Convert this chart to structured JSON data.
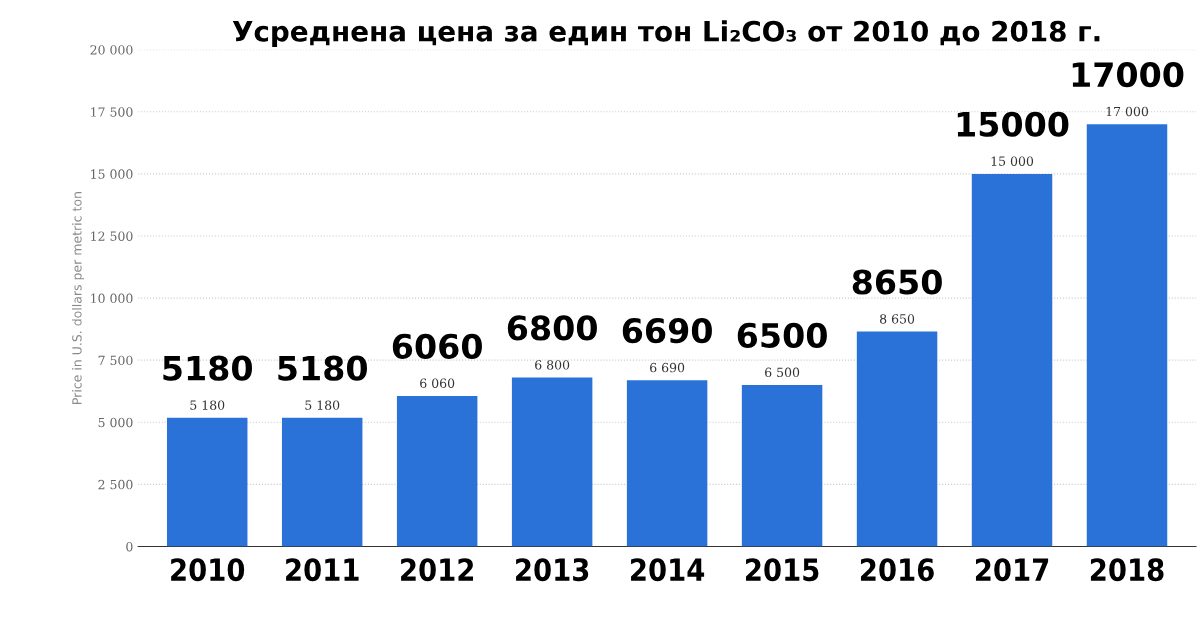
{
  "chart_data": {
    "type": "bar",
    "title": "Усреднена цена за един тон Li₂CO₃ от 2010 до 2018 г.",
    "ylabel": "Price in U.S. dollars per metric ton",
    "categories": [
      "2010",
      "2011",
      "2012",
      "2013",
      "2014",
      "2015",
      "2016",
      "2017",
      "2018"
    ],
    "values": [
      5180,
      5180,
      6060,
      6800,
      6690,
      6500,
      8650,
      15000,
      17000
    ],
    "value_labels": [
      "5 180",
      "5 180",
      "6 060",
      "6 800",
      "6 690",
      "6 500",
      "8 650",
      "15 000",
      "17 000"
    ],
    "color": "#2a72d8",
    "ylim": [
      0,
      20000
    ],
    "yticks": [
      0,
      {
        "value": 2500,
        "label": "2 500"
      },
      {
        "value": 5000,
        "label": "5 000"
      },
      {
        "value": 7500,
        "label": "7 500"
      },
      {
        "value": 10000,
        "label": "10 000"
      },
      {
        "value": 12500,
        "label": "12 500"
      },
      {
        "value": 15000,
        "label": "15 000"
      },
      {
        "value": 17500,
        "label": "17 500"
      },
      {
        "value": 20000,
        "label": "20 000"
      }
    ],
    "grid": "y",
    "annotations": [
      {
        "text": "5180",
        "x": "2010",
        "y": 5180
      },
      {
        "text": "5180",
        "x": "2011",
        "y": 5180
      },
      {
        "text": "6060",
        "x": "2012",
        "y": 6060
      },
      {
        "text": "6800",
        "x": "2013",
        "y": 6800
      },
      {
        "text": "6690",
        "x": "2014",
        "y": 6690
      },
      {
        "text": "6500",
        "x": "2015",
        "y": 6500
      },
      {
        "text": "8650",
        "x": "2016",
        "y": 8650
      },
      {
        "text": "15000",
        "x": "2017",
        "y": 15000
      },
      {
        "text": "17000",
        "x": "2018",
        "y": 17000
      }
    ]
  }
}
